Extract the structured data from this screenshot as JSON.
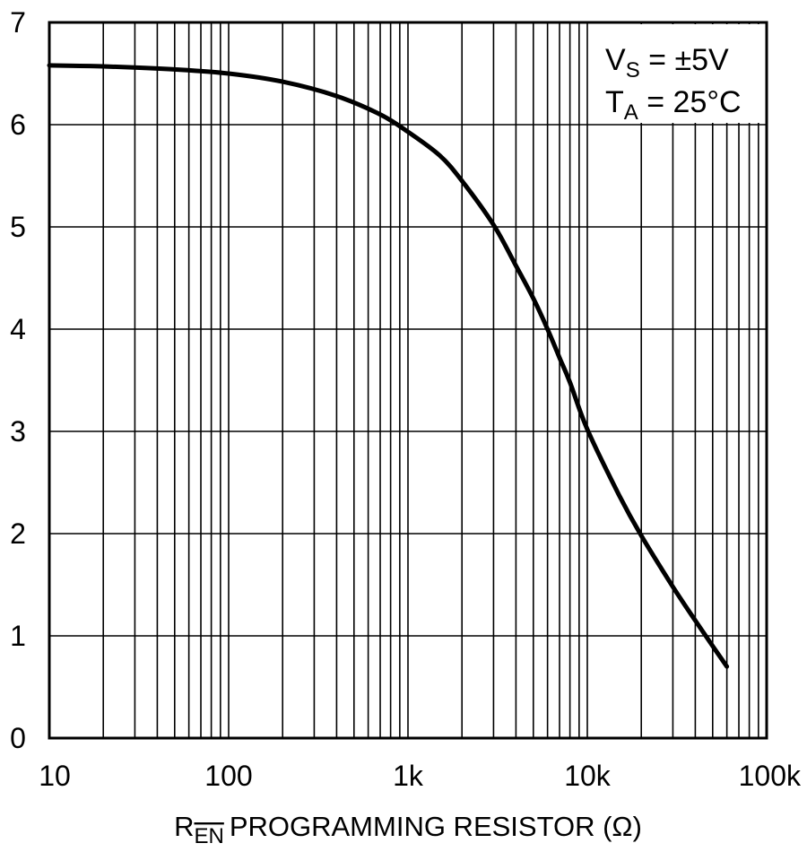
{
  "chart_data": {
    "type": "line",
    "title": "",
    "xlabel": {
      "prefix": "R",
      "subscript": "EN",
      "text": "PROGRAMMING RESISTOR (Ω)"
    },
    "ylabel": "",
    "xscale": "log",
    "xlim": [
      10,
      100000
    ],
    "ylim": [
      0,
      7
    ],
    "grid": true,
    "x_ticks": [
      {
        "value": 10,
        "label": "10"
      },
      {
        "value": 100,
        "label": "100"
      },
      {
        "value": 1000,
        "label": "1k"
      },
      {
        "value": 10000,
        "label": "10k"
      },
      {
        "value": 100000,
        "label": "100k"
      }
    ],
    "y_ticks": [
      {
        "value": 0,
        "label": "0"
      },
      {
        "value": 1,
        "label": "1"
      },
      {
        "value": 2,
        "label": "2"
      },
      {
        "value": 3,
        "label": "3"
      },
      {
        "value": 4,
        "label": "4"
      },
      {
        "value": 5,
        "label": "5"
      },
      {
        "value": 6,
        "label": "6"
      },
      {
        "value": 7,
        "label": "7"
      }
    ],
    "annotations": [
      {
        "main": "V",
        "sub": "S",
        "rest": " = ±5V"
      },
      {
        "main": "T",
        "sub": "A",
        "rest": " = 25°C"
      }
    ],
    "annotation_placement": "top-right",
    "series": [
      {
        "x": [
          10,
          20,
          50,
          100,
          200,
          400,
          700,
          1000,
          1500,
          2000,
          3000,
          4000,
          5000,
          6000,
          7000,
          8000,
          10000,
          15000,
          20000,
          30000,
          40000,
          50000,
          60000
        ],
        "y": [
          6.58,
          6.57,
          6.54,
          6.5,
          6.42,
          6.28,
          6.1,
          5.93,
          5.7,
          5.45,
          5.02,
          4.62,
          4.3,
          4.0,
          3.72,
          3.48,
          3.02,
          2.38,
          1.98,
          1.48,
          1.15,
          0.9,
          0.7
        ]
      }
    ]
  }
}
